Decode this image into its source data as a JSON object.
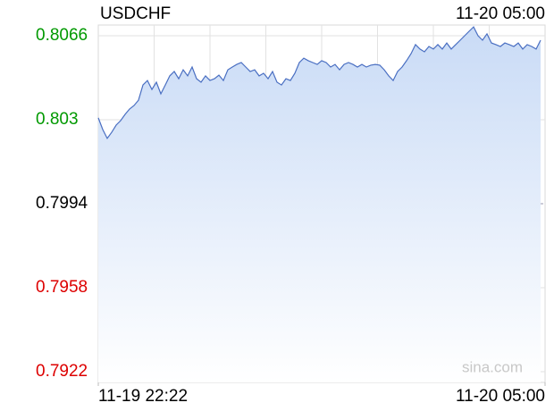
{
  "chart_data": {
    "type": "line",
    "title": "USDCHF",
    "last_time": "11-20 05:00",
    "watermark": "sina.com",
    "color": "#4a6fc2",
    "xlim": [
      0,
      100
    ],
    "xticks": [
      {
        "value": 0,
        "label": "11-19 22:22"
      },
      {
        "value": 100,
        "label": "11-20 05:00"
      }
    ],
    "ylim": [
      0.79174,
      0.80706
    ],
    "yticks": [
      0.8066,
      0.803,
      0.7994,
      0.7958,
      0.7922
    ],
    "ytick_colors": [
      "#009900",
      "#009900",
      "#000000",
      "#dd0000",
      "#dd0000"
    ],
    "reference": 0.7994,
    "grid": true,
    "values": [
      0.80308,
      0.80258,
      0.8022,
      0.80246,
      0.80277,
      0.80296,
      0.80323,
      0.80346,
      0.80361,
      0.80384,
      0.80449,
      0.80468,
      0.8043,
      0.80461,
      0.80411,
      0.80449,
      0.80488,
      0.80507,
      0.80476,
      0.80514,
      0.80488,
      0.80526,
      0.80476,
      0.80461,
      0.80488,
      0.80468,
      0.80476,
      0.80491,
      0.80468,
      0.80514,
      0.80526,
      0.80537,
      0.80545,
      0.80526,
      0.80507,
      0.80514,
      0.80488,
      0.80499,
      0.80476,
      0.80507,
      0.80461,
      0.80449,
      0.80476,
      0.80468,
      0.80499,
      0.80545,
      0.80564,
      0.80553,
      0.80545,
      0.80537,
      0.80553,
      0.80545,
      0.80526,
      0.80537,
      0.80514,
      0.80537,
      0.80545,
      0.80537,
      0.80526,
      0.80537,
      0.80526,
      0.80534,
      0.80537,
      0.80534,
      0.80514,
      0.80488,
      0.80468,
      0.80507,
      0.80526,
      0.80553,
      0.80583,
      0.80622,
      0.80603,
      0.80591,
      0.80614,
      0.80603,
      0.80622,
      0.80603,
      0.80629,
      0.80603,
      0.80622,
      0.80641,
      0.8066,
      0.80679,
      0.80698,
      0.8066,
      0.80641,
      0.80668,
      0.80629,
      0.80622,
      0.80614,
      0.80629,
      0.80622,
      0.80614,
      0.80629,
      0.80603,
      0.80622,
      0.80614,
      0.80603,
      0.80641
    ]
  }
}
